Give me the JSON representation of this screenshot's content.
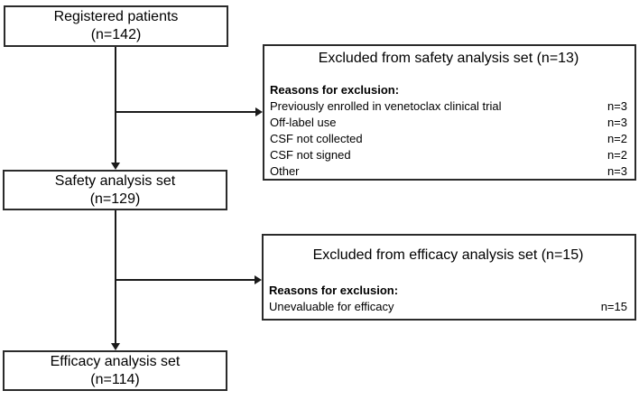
{
  "colors": {
    "border": "#2b2b2b",
    "line": "#1a1a1a",
    "background": "#ffffff",
    "text": "#000000"
  },
  "boxes": {
    "registered": {
      "title": "Registered patients",
      "count": "(n=142)"
    },
    "safety": {
      "title": "Safety analysis set",
      "count": "(n=129)"
    },
    "efficacy": {
      "title": "Efficacy analysis set",
      "count": "(n=114)"
    }
  },
  "exclusions": [
    {
      "title": "Excluded from safety analysis set (n=13)",
      "reasons_label": "Reasons for exclusion:",
      "reasons": [
        {
          "label": "Previously enrolled in venetoclax clinical trial",
          "value": "n=3"
        },
        {
          "label": "Off-label use",
          "value": "n=3"
        },
        {
          "label": "CSF not collected",
          "value": "n=2"
        },
        {
          "label": "CSF not signed",
          "value": "n=2"
        },
        {
          "label": "Other",
          "value": "n=3"
        }
      ]
    },
    {
      "title": "Excluded from efficacy analysis set (n=15)",
      "reasons_label": "Reasons for exclusion:",
      "reasons": [
        {
          "label": "Unevaluable for efficacy",
          "value": "n=15"
        }
      ]
    }
  ]
}
